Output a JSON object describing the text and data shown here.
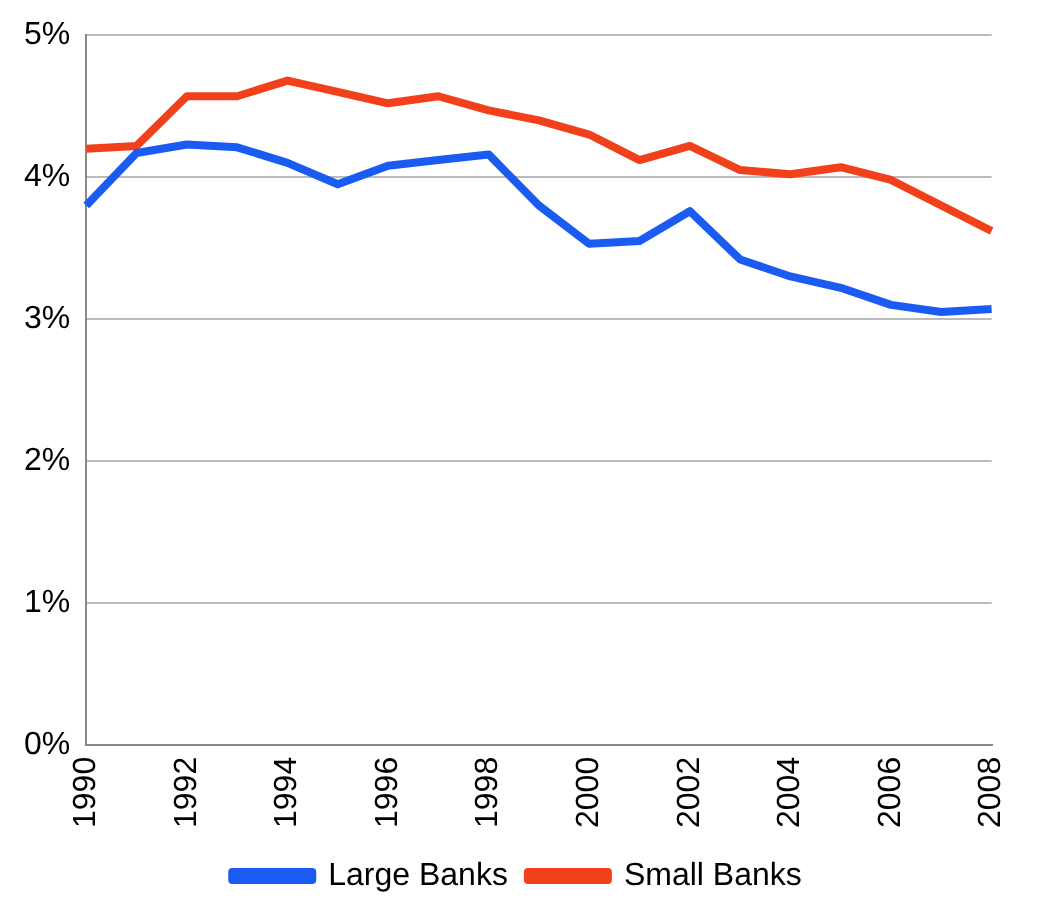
{
  "chart_data": {
    "type": "line",
    "categories": [
      "1990",
      null,
      "1992",
      null,
      "1994",
      null,
      "1996",
      null,
      "1998",
      null,
      "2000",
      null,
      "2002",
      null,
      "2004",
      null,
      "2006",
      null,
      "2008"
    ],
    "series": [
      {
        "name": "Large Banks",
        "color": "#1a5cf2",
        "values": [
          3.8,
          4.17,
          4.23,
          4.21,
          4.1,
          3.95,
          4.08,
          4.12,
          4.16,
          3.8,
          3.53,
          3.55,
          3.76,
          3.42,
          3.3,
          3.22,
          3.1,
          3.05,
          3.07
        ]
      },
      {
        "name": "Small Banks",
        "color": "#f2401a",
        "values": [
          4.2,
          4.22,
          4.57,
          4.57,
          4.68,
          4.6,
          4.52,
          4.57,
          4.47,
          4.4,
          4.3,
          4.12,
          4.22,
          4.05,
          4.02,
          4.07,
          3.98,
          3.8,
          3.62
        ]
      }
    ],
    "ylim": [
      0,
      5
    ],
    "yticks": [
      {
        "value": 0,
        "label": "0%"
      },
      {
        "value": 1,
        "label": "1%"
      },
      {
        "value": 2,
        "label": "2%"
      },
      {
        "value": 3,
        "label": "3%"
      },
      {
        "value": 4,
        "label": "4%"
      },
      {
        "value": 5,
        "label": "5%"
      }
    ],
    "grid": "y",
    "legend": "bottom",
    "marker": "none",
    "line_style": "solid"
  }
}
